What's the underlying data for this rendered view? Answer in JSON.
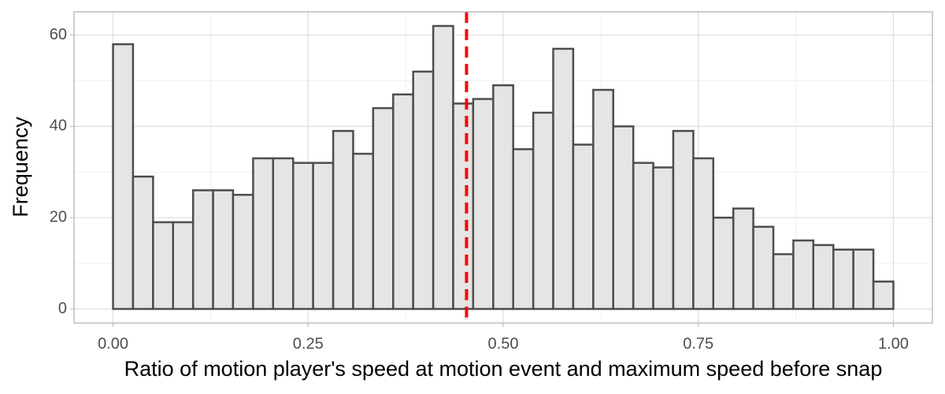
{
  "chart_data": {
    "type": "histogram",
    "x_label": "Ratio of motion player's speed at motion event and maximum speed before snap",
    "y_label": "Frequency",
    "bins": [
      0,
      0.0256,
      0.0513,
      0.0769,
      0.1026,
      0.1282,
      0.1538,
      0.1795,
      0.2051,
      0.2308,
      0.2564,
      0.2821,
      0.3077,
      0.3333,
      0.359,
      0.3846,
      0.4103,
      0.4359,
      0.4615,
      0.4872,
      0.5128,
      0.5385,
      0.5641,
      0.5897,
      0.6154,
      0.641,
      0.6667,
      0.6923,
      0.7179,
      0.7436,
      0.7692,
      0.7949,
      0.8205,
      0.8462,
      0.8718,
      0.8974,
      0.9231,
      0.9487,
      0.9744,
      1
    ],
    "counts": [
      58,
      29,
      19,
      19,
      26,
      26,
      25,
      33,
      33,
      32,
      32,
      39,
      34,
      44,
      47,
      52,
      62,
      45,
      46,
      49,
      35,
      43,
      57,
      36,
      48,
      40,
      32,
      31,
      39,
      33,
      20,
      22,
      18,
      12,
      15,
      14,
      13,
      13,
      6
    ],
    "color": "#e5e5e5",
    "edge_color": "#4d4d4d",
    "vline": 0.453,
    "vline_color": "#ff0000",
    "xlim": [
      -0.05,
      1.05
    ],
    "ylim": [
      -3.1,
      65.1
    ],
    "xticks": [
      {
        "value": 0,
        "label": "0.00"
      },
      {
        "value": 0.25,
        "label": "0.25"
      },
      {
        "value": 0.5,
        "label": "0.50"
      },
      {
        "value": 0.75,
        "label": "0.75"
      },
      {
        "value": 1,
        "label": "1.00"
      }
    ],
    "yticks": [
      0,
      20,
      40,
      60
    ],
    "xminor": [
      0.125,
      0.375,
      0.625,
      0.875
    ],
    "yminor": [
      10,
      30,
      50
    ],
    "grid": true
  }
}
